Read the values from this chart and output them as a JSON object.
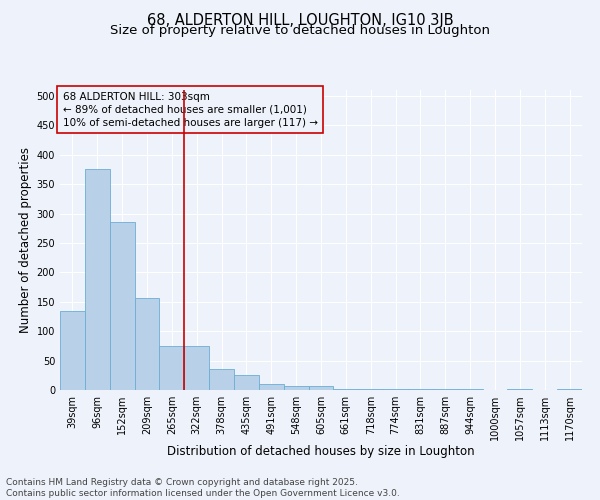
{
  "title": "68, ALDERTON HILL, LOUGHTON, IG10 3JB",
  "subtitle": "Size of property relative to detached houses in Loughton",
  "xlabel": "Distribution of detached houses by size in Loughton",
  "ylabel": "Number of detached properties",
  "categories": [
    "39sqm",
    "96sqm",
    "152sqm",
    "209sqm",
    "265sqm",
    "322sqm",
    "378sqm",
    "435sqm",
    "491sqm",
    "548sqm",
    "605sqm",
    "661sqm",
    "718sqm",
    "774sqm",
    "831sqm",
    "887sqm",
    "944sqm",
    "1000sqm",
    "1057sqm",
    "1113sqm",
    "1170sqm"
  ],
  "values": [
    135,
    375,
    285,
    157,
    75,
    75,
    35,
    25,
    10,
    7,
    7,
    2,
    2,
    2,
    2,
    2,
    2,
    0,
    1,
    0,
    2
  ],
  "bar_color": "#b8d0e8",
  "bar_edge_color": "#6baed6",
  "vline_color": "#cc0000",
  "vline_x_index": 5,
  "annotation_box_text": "68 ALDERTON HILL: 303sqm\n← 89% of detached houses are smaller (1,001)\n10% of semi-detached houses are larger (117) →",
  "annotation_box_color": "#cc0000",
  "ylim": [
    0,
    510
  ],
  "yticks": [
    0,
    50,
    100,
    150,
    200,
    250,
    300,
    350,
    400,
    450,
    500
  ],
  "background_color": "#eef2fa",
  "grid_color": "#ffffff",
  "footer": "Contains HM Land Registry data © Crown copyright and database right 2025.\nContains public sector information licensed under the Open Government Licence v3.0.",
  "title_fontsize": 10.5,
  "subtitle_fontsize": 9.5,
  "xlabel_fontsize": 8.5,
  "ylabel_fontsize": 8.5,
  "tick_fontsize": 7,
  "annotation_fontsize": 7.5,
  "footer_fontsize": 6.5
}
